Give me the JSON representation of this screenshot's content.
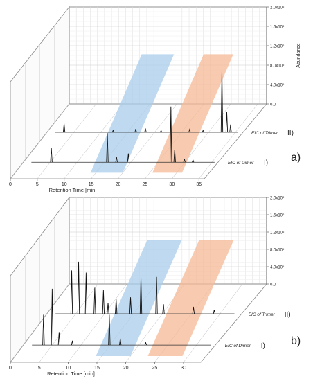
{
  "chart_data": [
    {
      "type": "line",
      "panel_label": "a)",
      "xlabel": "Retention Time [min]",
      "zlabel": "Abundance",
      "x_ticks": [
        "0",
        "5",
        "10",
        "15",
        "20",
        "25",
        "30",
        "35"
      ],
      "xlim": [
        0,
        36
      ],
      "z_ticks": [
        "0.0",
        "4.0x10⁵",
        "8.0x10⁵",
        "1.2x10⁶",
        "1.6x10⁶",
        "2.0x10⁶"
      ],
      "zlim": [
        0,
        2000000
      ],
      "highlight_regions": [
        {
          "color": "#a9cdeb",
          "x_range": [
            14,
            20
          ]
        },
        {
          "color": "#f5b996",
          "x_range": [
            25.5,
            31
          ]
        }
      ],
      "series": [
        {
          "label": "EIC of Dimer",
          "roman": "I)",
          "peaks": [
            [
              5.2,
              300000
            ],
            [
              15.6,
              600000
            ],
            [
              17.3,
              110000
            ],
            [
              19.5,
              180000
            ],
            [
              27.4,
              1150000
            ],
            [
              28.1,
              260000
            ],
            [
              29.9,
              70000
            ],
            [
              31.5,
              50000
            ]
          ]
        },
        {
          "label": "EIC of Trimer",
          "roman": "II)",
          "peaks": [
            [
              3.2,
              180000
            ],
            [
              12.3,
              40000
            ],
            [
              16.5,
              70000
            ],
            [
              18.3,
              80000
            ],
            [
              21.2,
              40000
            ],
            [
              26.5,
              60000
            ],
            [
              29.0,
              40000
            ],
            [
              32.5,
              1300000
            ],
            [
              33.4,
              420000
            ],
            [
              34.1,
              160000
            ]
          ]
        }
      ]
    },
    {
      "type": "line",
      "panel_label": "b)",
      "xlabel": "Retention Time [min]",
      "x_ticks": [
        "0",
        "5",
        "10",
        "15",
        "20",
        "25",
        "30"
      ],
      "xlim": [
        0,
        33
      ],
      "z_ticks": [
        "0.0",
        "4.0x10⁵",
        "8.0x10⁵",
        "1.2x10⁶",
        "1.6x10⁶",
        "2.0x10⁶"
      ],
      "zlim": [
        0,
        2000000
      ],
      "highlight_regions": [
        {
          "color": "#a9cdeb",
          "x_range": [
            14,
            20
          ]
        },
        {
          "color": "#f5b996",
          "x_range": [
            23,
            29
          ]
        }
      ],
      "series": [
        {
          "label": "EIC of Dimer",
          "roman": "I)",
          "peaks": [
            [
              3.5,
              700000
            ],
            [
              5.0,
              1300000
            ],
            [
              6.2,
              300000
            ],
            [
              8.5,
              100000
            ],
            [
              14.9,
              700000
            ],
            [
              16.8,
              150000
            ],
            [
              21.2,
              60000
            ]
          ]
        },
        {
          "label": "EIC of Trimer",
          "roman": "II)",
          "peaks": [
            [
              4.3,
              1000000
            ],
            [
              5.5,
              1200000
            ],
            [
              6.8,
              950000
            ],
            [
              8.3,
              600000
            ],
            [
              9.8,
              550000
            ],
            [
              10.6,
              250000
            ],
            [
              12.0,
              350000
            ],
            [
              14.5,
              380000
            ],
            [
              16.3,
              850000
            ],
            [
              19.0,
              850000
            ],
            [
              20.2,
              220000
            ],
            [
              25.4,
              160000
            ],
            [
              29.0,
              90000
            ]
          ]
        }
      ]
    }
  ]
}
